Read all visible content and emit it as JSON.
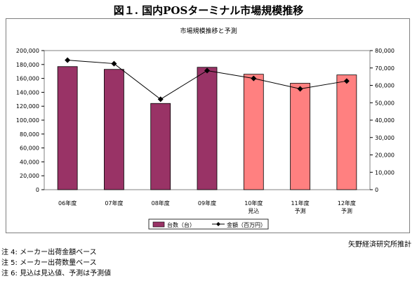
{
  "figure_title": "図１. 国内POSターミナル市場規模推移",
  "source": "矢野経済研究所推計",
  "notes": [
    "注 4: メーカー出荷金額ベース",
    "注 5: メーカー出荷数量ベース",
    "注 6: 見込は見込値、予測は予測値"
  ],
  "colors": {
    "bar_actual": "#993366",
    "bar_forecast": "#ff8080",
    "line": "#000000",
    "plot_background": "#ffffff"
  },
  "chart_data": {
    "type": "bar",
    "title": "市場規模推移と予測",
    "categories": [
      [
        "06年度"
      ],
      [
        "07年度"
      ],
      [
        "08年度"
      ],
      [
        "09年度"
      ],
      [
        "10年度",
        "見込"
      ],
      [
        "11年度",
        "予測"
      ],
      [
        "12年度",
        "予測"
      ]
    ],
    "bar_status": [
      "actual",
      "actual",
      "actual",
      "actual",
      "forecast",
      "forecast",
      "forecast"
    ],
    "series": [
      {
        "name": "台数（台）",
        "type": "bar",
        "axis": "left",
        "values": [
          177000,
          173000,
          124000,
          176000,
          166000,
          153000,
          165000
        ]
      },
      {
        "name": "金額（百万円）",
        "type": "line",
        "axis": "right",
        "marker": "diamond",
        "values": [
          74500,
          72500,
          52000,
          68500,
          64000,
          58000,
          62500
        ]
      }
    ],
    "y_left": {
      "lim": [
        0,
        200000
      ],
      "ticks": [
        "0",
        "20,000",
        "40,000",
        "60,000",
        "80,000",
        "100,000",
        "120,000",
        "140,000",
        "160,000",
        "180,000",
        "200,000"
      ]
    },
    "y_right": {
      "lim": [
        0,
        80000
      ],
      "ticks": [
        "0",
        "10,000",
        "20,000",
        "30,000",
        "40,000",
        "50,000",
        "60,000",
        "70,000",
        "80,000"
      ]
    },
    "legend_position": "bottom-center",
    "grid": false
  }
}
